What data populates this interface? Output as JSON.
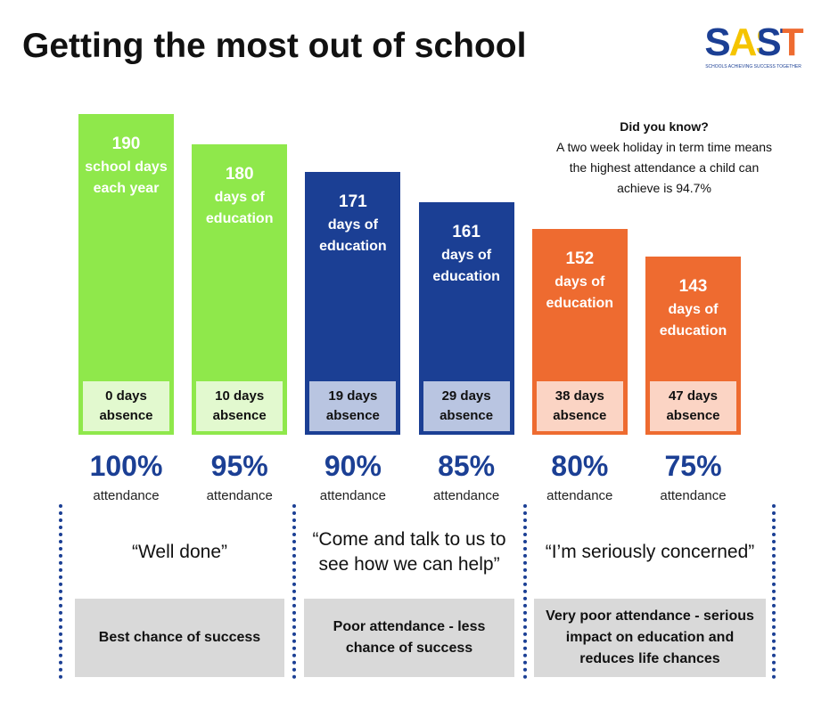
{
  "chart_data": {
    "type": "bar",
    "title": "Getting the most out of school",
    "logo": {
      "text": "SAST",
      "tagline": "SCHOOLS ACHIEVING SUCCESS TOGETHER"
    },
    "note": {
      "heading": "Did you know?",
      "text": "A two week holiday in term time means the highest attendance a child can achieve is 94.7%"
    },
    "values": [
      190,
      180,
      171,
      161,
      152,
      143
    ],
    "bar_captions": [
      "school days each year",
      "days of education",
      "days of education",
      "days of education",
      "days of education",
      "days of education"
    ],
    "absence_labels": [
      "0 days absence",
      "10 days absence",
      "19 days absence",
      "29 days absence",
      "38 days absence",
      "47 days absence"
    ],
    "attendance_labels": [
      "100%",
      "95%",
      "90%",
      "85%",
      "80%",
      "75%"
    ],
    "attendance_captions": [
      "attendance",
      "attendance",
      "attendance",
      "attendance",
      "attendance",
      "attendance"
    ],
    "colors": [
      "#8fe84b",
      "#8fe84b",
      "#1b3f94",
      "#1b3f94",
      "#ee6b30",
      "#ee6b30"
    ],
    "absence_colors": [
      "#e2f9cf",
      "#e2f9cf",
      "#b9c5e1",
      "#b9c5e1",
      "#fbd4c4",
      "#fbd4c4"
    ],
    "groups": [
      {
        "quote": "“Well done”",
        "outcome": "Best chance of success"
      },
      {
        "quote": "“Come and talk to us to see how we can help”",
        "outcome": "Poor attendance - less chance of success"
      },
      {
        "quote": "“I’m seriously concerned”",
        "outcome": "Very poor attendance - serious impact on education and reduces life chances"
      }
    ]
  }
}
